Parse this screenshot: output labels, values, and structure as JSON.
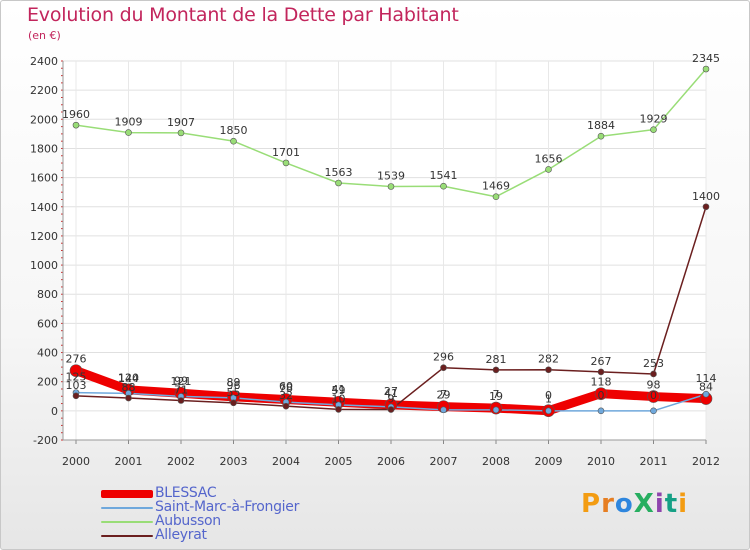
{
  "chart_data": {
    "type": "line",
    "title": "Evolution du Montant de la Dette par Habitant",
    "subtitle": "(en €)",
    "x": [
      "2000",
      "2001",
      "2002",
      "2003",
      "2004",
      "2005",
      "2006",
      "2007",
      "2008",
      "2009",
      "2010",
      "2011",
      "2012"
    ],
    "ylim": [
      -200,
      2400
    ],
    "yticks": [
      -200,
      0,
      200,
      400,
      600,
      800,
      1000,
      1200,
      1400,
      1600,
      1800,
      2000,
      2200,
      2400
    ],
    "grid": true,
    "legend_position": "bottom-left",
    "series": [
      {
        "name": "BLESSAC",
        "color": "#ee0000",
        "values": [
          276,
          144,
          121,
          96,
          78,
          59,
          41,
          29,
          19,
          1,
          118,
          98,
          84
        ],
        "labels": [
          "276",
          "144",
          "121",
          "96",
          "78",
          "59",
          "41",
          "29",
          "19",
          "1",
          "118",
          "98",
          "84"
        ]
      },
      {
        "name": "Saint-Marc-à-Frongier",
        "color": "#6fa8dc",
        "values": [
          125,
          120,
          99,
          89,
          60,
          41,
          27,
          7,
          7,
          0,
          0,
          0,
          114
        ],
        "labels": [
          "125",
          "120",
          "99",
          "89",
          "60",
          "41",
          "27",
          "7",
          "7",
          "0",
          "0",
          "0",
          "114"
        ]
      },
      {
        "name": "Aubusson",
        "color": "#99dd77",
        "values": [
          1960,
          1909,
          1907,
          1850,
          1701,
          1563,
          1539,
          1541,
          1469,
          1656,
          1884,
          1929,
          2345
        ],
        "labels": [
          "1960",
          "1909",
          "1907",
          "1850",
          "1701",
          "1563",
          "1539",
          "1541",
          "1469",
          "1656",
          "1884",
          "1929",
          "2345"
        ]
      },
      {
        "name": "Alleyrat",
        "color": "#6b1f1f",
        "values": [
          103,
          88,
          71,
          55,
          32,
          10,
          9,
          296,
          281,
          282,
          267,
          253,
          1400
        ],
        "labels": [
          "103",
          "88",
          "71",
          "55",
          "32",
          "10",
          "9",
          "296",
          "281",
          "282",
          "267",
          "253",
          "1400"
        ]
      }
    ]
  },
  "logo_text": "ProXiti"
}
